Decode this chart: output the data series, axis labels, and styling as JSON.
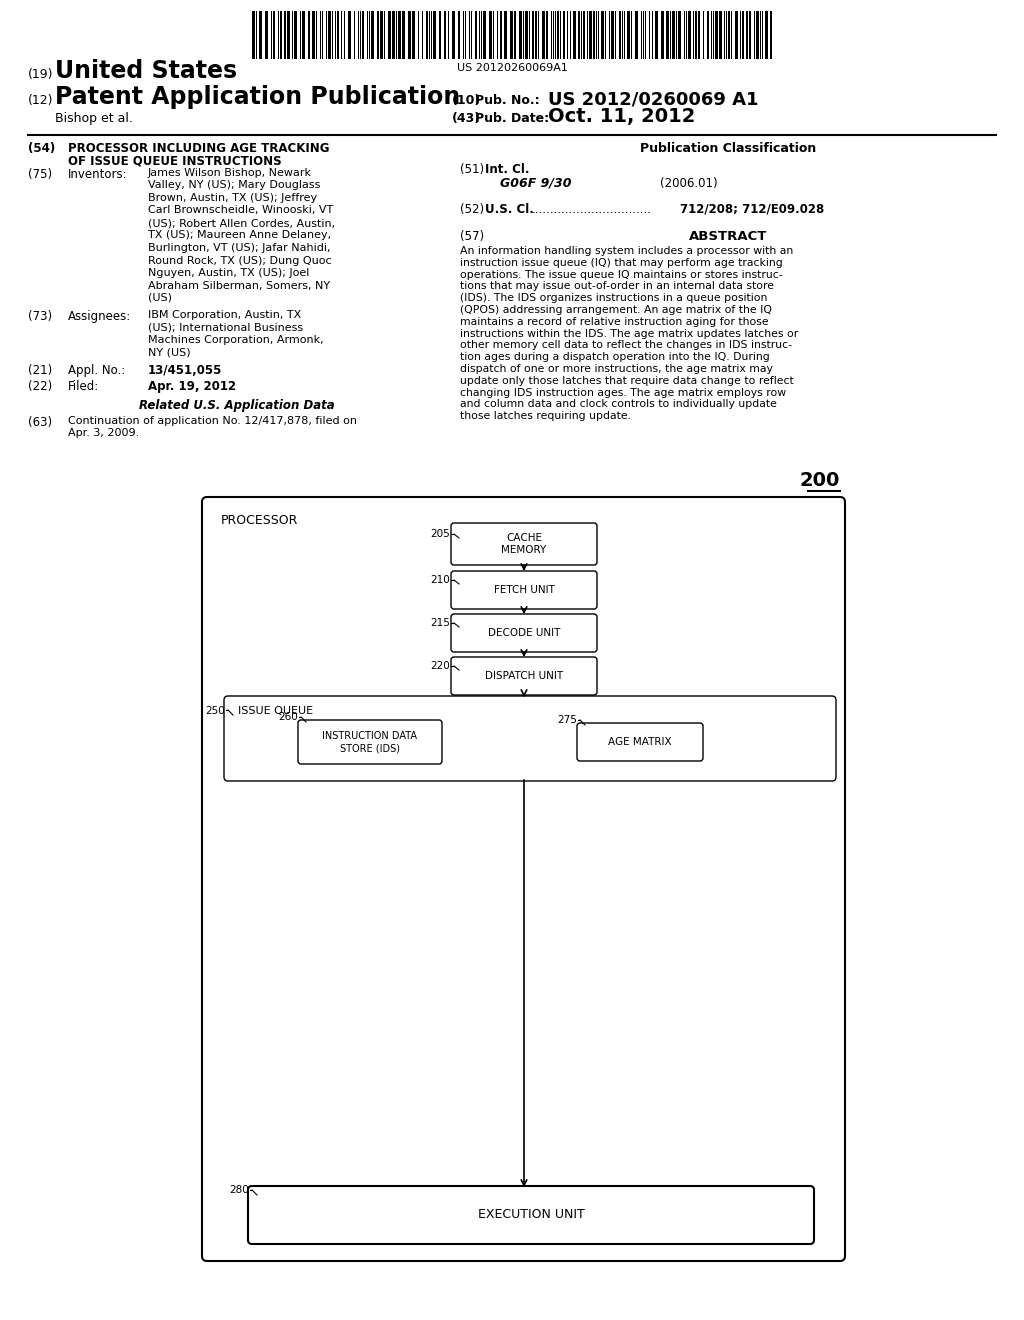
{
  "bg_color": "#ffffff",
  "barcode_text": "US 20120260069A1",
  "header": {
    "line1_num": "(19)",
    "line1_text": "United States",
    "line2_num": "(12)",
    "line2_text": "Patent Application Publication",
    "line3_right_num": "(10)",
    "line3_right_label": "Pub. No.:",
    "line3_right_val": "US 2012/0260069 A1",
    "line4_left": "Bishop et al.",
    "line4_right_num": "(43)",
    "line4_right_label": "Pub. Date:",
    "line4_right_val": "Oct. 11, 2012"
  },
  "left_col": {
    "title_num": "(54)",
    "title_lines": [
      "PROCESSOR INCLUDING AGE TRACKING",
      "OF ISSUE QUEUE INSTRUCTIONS"
    ],
    "inventors_num": "(75)",
    "inventors_label": "Inventors:",
    "inv_text_lines": [
      "James Wilson Bishop, Newark",
      "Valley, NY (US); Mary Douglass",
      "Brown, Austin, TX (US); Jeffrey",
      "Carl Brownscheidle, Winooski, VT",
      "(US); Robert Allen Cordes, Austin,",
      "TX (US); Maureen Anne Delaney,",
      "Burlington, VT (US); Jafar Nahidi,",
      "Round Rock, TX (US); Dung Quoc",
      "Nguyen, Austin, TX (US); Joel",
      "Abraham Silberman, Somers, NY",
      "(US)"
    ],
    "assignees_num": "(73)",
    "assignees_label": "Assignees:",
    "assign_lines": [
      "IBM Corporation, Austin, TX",
      "(US); International Business",
      "Machines Corporation, Armonk,",
      "NY (US)"
    ],
    "appl_num": "(21)",
    "appl_label": "Appl. No.:",
    "appl_val": "13/451,055",
    "filed_num": "(22)",
    "filed_label": "Filed:",
    "filed_val": "Apr. 19, 2012",
    "related_label": "Related U.S. Application Data",
    "cont_num": "(63)",
    "cont_lines": [
      "Continuation of application No. 12/417,878, filed on",
      "Apr. 3, 2009."
    ]
  },
  "right_col": {
    "pub_class_label": "Publication Classification",
    "int_cl_num": "(51)",
    "int_cl_label": "Int. Cl.",
    "int_cl_class": "G06F 9/30",
    "int_cl_year": "(2006.01)",
    "us_cl_num": "(52)",
    "us_cl_label": "U.S. Cl.",
    "us_cl_dots": "................................",
    "us_cl_val": "712/208; 712/E09.028",
    "abstract_num": "(57)",
    "abstract_label": "ABSTRACT",
    "abstract_lines": [
      "An information handling system includes a processor with an",
      "instruction issue queue (IQ) that may perform age tracking",
      "operations. The issue queue IQ maintains or stores instruc-",
      "tions that may issue out-of-order in an internal data store",
      "(IDS). The IDS organizes instructions in a queue position",
      "(QPOS) addressing arrangement. An age matrix of the IQ",
      "maintains a record of relative instruction aging for those",
      "instructions within the IDS. The age matrix updates latches or",
      "other memory cell data to reflect the changes in IDS instruc-",
      "tion ages during a dispatch operation into the IQ. During",
      "dispatch of one or more instructions, the age matrix may",
      "update only those latches that require data change to reflect",
      "changing IDS instruction ages. The age matrix employs row",
      "and column data and clock controls to individually update",
      "those latches requiring update."
    ]
  },
  "diagram": {
    "fig_num": "200",
    "outer_box_label": "PROCESSOR",
    "cache_label": "CACHE\nMEMORY",
    "cache_num": "205",
    "fetch_label": "FETCH UNIT",
    "fetch_num": "210",
    "decode_label": "DECODE UNIT",
    "decode_num": "215",
    "dispatch_label": "DISPATCH UNIT",
    "dispatch_num": "220",
    "iq_label": "ISSUE QUEUE",
    "iq_num": "250",
    "ids_label": "INSTRUCTION DATA\nSTORE (IDS)",
    "ids_num": "260",
    "age_label": "AGE MATRIX",
    "age_num": "275",
    "exec_label": "EXECUTION UNIT",
    "exec_num": "280"
  }
}
